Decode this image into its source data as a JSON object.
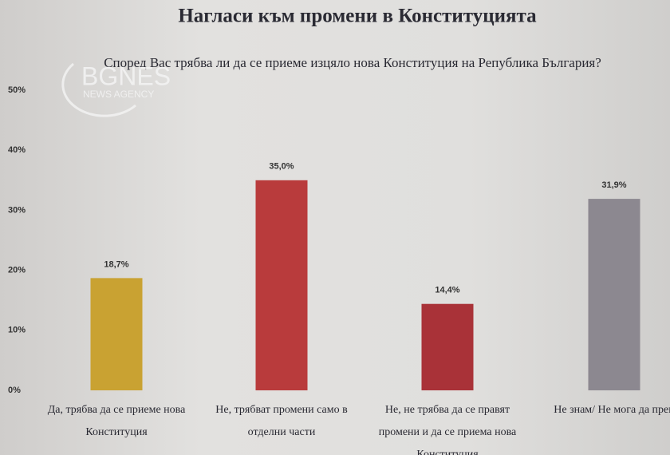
{
  "chart_data": {
    "type": "bar",
    "title": "Нагласи към промени в Конституцията",
    "subtitle": "Според Вас трябва ли да се приеме изцяло нова Конституция на Република България?",
    "watermark": {
      "name": "BGNES",
      "tagline": "NEWS AGENCY"
    },
    "categories": [
      "Да, трябва да се приеме нова\nКонституция",
      "Не, трябват промени  само в\nотделни части",
      "Не, не трябва да се правят\nпромени и да се приема нова\nКонституция",
      "Не знам/ Не мога да прец"
    ],
    "values": [
      18.7,
      35.0,
      14.4,
      31.9
    ],
    "value_labels": [
      "18,7%",
      "35,0%",
      "14,4%",
      "31,9%"
    ],
    "colors": [
      "#c9a232",
      "#b93b3c",
      "#a93238",
      "#8c8890"
    ],
    "ylim": [
      0,
      50
    ],
    "yticks": [
      {
        "value": 0,
        "label": "0%"
      },
      {
        "value": 10,
        "label": "10%"
      },
      {
        "value": 20,
        "label": "20%"
      },
      {
        "value": 30,
        "label": "30%"
      },
      {
        "value": 40,
        "label": "40%"
      },
      {
        "value": 50,
        "label": "50%"
      }
    ],
    "grid": false
  }
}
